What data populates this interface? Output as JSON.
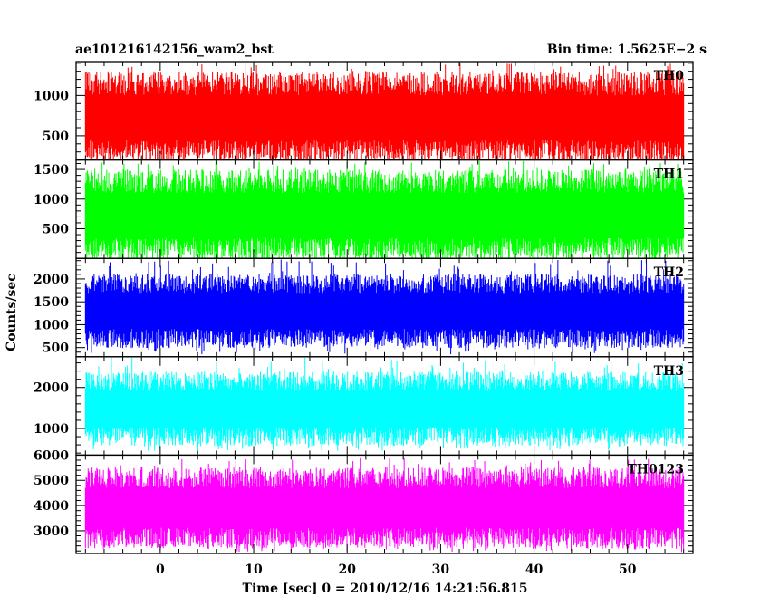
{
  "header": {
    "left_title": "ae101216142156_wam2_bst",
    "right_title": "Bin time: 1.5625E−2 s"
  },
  "chart_data": {
    "type": "line",
    "xlabel": "Time [sec] 0 = 2010/12/16 14:21:56.815",
    "ylabel": "Counts/sec",
    "xlim": [
      -9,
      57
    ],
    "x_data_range": [
      -8,
      56
    ],
    "x_ticks": [
      0,
      10,
      20,
      30,
      40,
      50
    ],
    "x_tick_labels": [
      "0",
      "10",
      "20",
      "30",
      "40",
      "50"
    ],
    "grid": false,
    "legend": "none",
    "panels": [
      {
        "name": "TH0",
        "color": "#ff0000",
        "ylim": [
          200,
          1420
        ],
        "y_ticks": [
          500,
          1000
        ],
        "y_tick_labels": [
          "500",
          "1000"
        ],
        "typical_range": [
          300,
          1150
        ],
        "min": 220,
        "max": 1400
      },
      {
        "name": "TH1",
        "color": "#00ff00",
        "ylim": [
          0,
          1660
        ],
        "y_ticks": [
          500,
          1000,
          1500
        ],
        "y_tick_labels": [
          "500",
          "1000",
          "1500"
        ],
        "typical_range": [
          150,
          1300
        ],
        "min": 30,
        "max": 1650
      },
      {
        "name": "TH2",
        "color": "#0000ff",
        "ylim": [
          300,
          2450
        ],
        "y_ticks": [
          500,
          1000,
          1500,
          2000
        ],
        "y_tick_labels": [
          "500",
          "1000",
          "1500",
          "2000"
        ],
        "typical_range": [
          700,
          1900
        ],
        "min": 350,
        "max": 2430
      },
      {
        "name": "TH3",
        "color": "#00ffff",
        "ylim": [
          350,
          2750
        ],
        "y_ticks": [
          1000,
          2000
        ],
        "y_tick_labels": [
          "1000",
          "2000"
        ],
        "typical_range": [
          800,
          2150
        ],
        "min": 450,
        "max": 2730
      },
      {
        "name": "TH0123",
        "color": "#ff00ff",
        "ylim": [
          2100,
          6000
        ],
        "y_ticks": [
          3000,
          4000,
          5000,
          6000
        ],
        "y_tick_labels": [
          "3000",
          "4000",
          "5000",
          "6000"
        ],
        "typical_range": [
          2700,
          5100
        ],
        "min": 2150,
        "max": 5900
      }
    ]
  }
}
